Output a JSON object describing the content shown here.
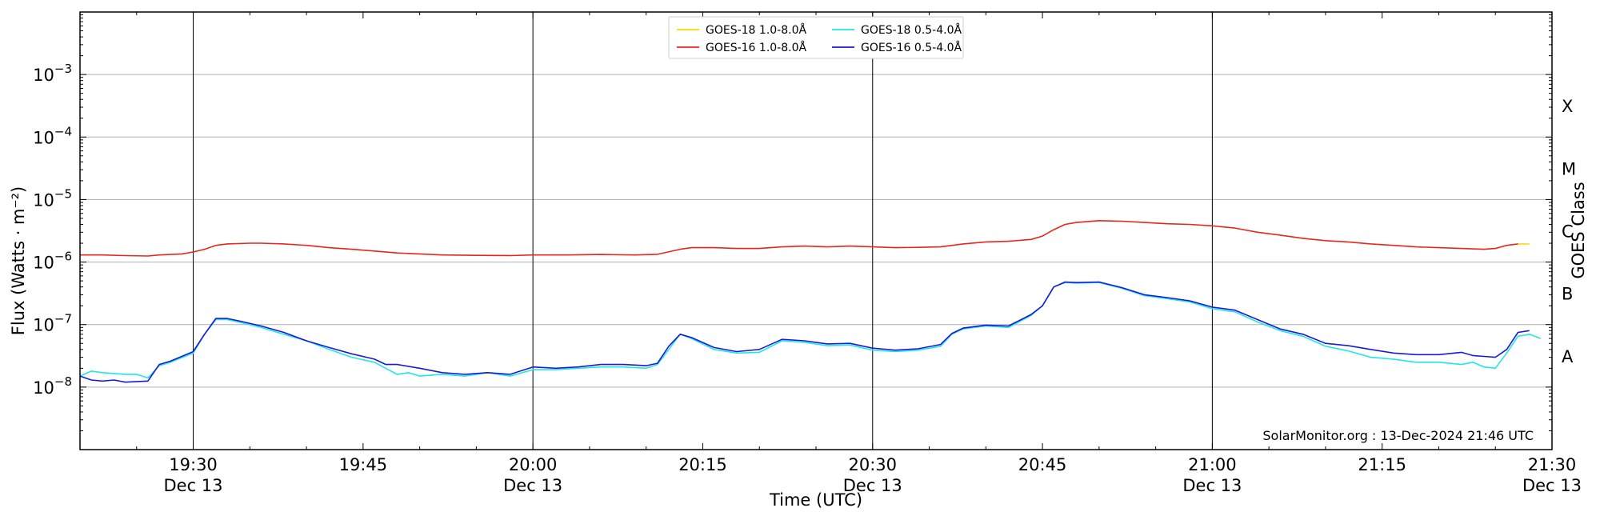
{
  "chart_data": {
    "type": "line",
    "title": "",
    "xlabel": "Time (UTC)",
    "ylabel": "Flux (Watts · m⁻²)",
    "y2label": "GOES Class",
    "yscale": "log",
    "ylim": [
      1e-09,
      0.01
    ],
    "xlim": [
      "19:20",
      "21:30"
    ],
    "grid": "horizontal",
    "legend_position": "top-center",
    "yticks": [
      {
        "value": 1e-08,
        "base": "10",
        "exp": "−8"
      },
      {
        "value": 1e-07,
        "base": "10",
        "exp": "−7"
      },
      {
        "value": 1e-06,
        "base": "10",
        "exp": "−6"
      },
      {
        "value": 1e-05,
        "base": "10",
        "exp": "−5"
      },
      {
        "value": 0.0001,
        "base": "10",
        "exp": "−4"
      },
      {
        "value": 0.001,
        "base": "10",
        "exp": "−3"
      }
    ],
    "xticks": [
      {
        "time": "19:30",
        "label": "19:30",
        "sub": "Dec 13"
      },
      {
        "time": "19:45",
        "label": "19:45",
        "sub": ""
      },
      {
        "time": "20:00",
        "label": "20:00",
        "sub": "Dec 13"
      },
      {
        "time": "20:15",
        "label": "20:15",
        "sub": ""
      },
      {
        "time": "20:30",
        "label": "20:30",
        "sub": "Dec 13"
      },
      {
        "time": "20:45",
        "label": "20:45",
        "sub": ""
      },
      {
        "time": "21:00",
        "label": "21:00",
        "sub": "Dec 13"
      },
      {
        "time": "21:15",
        "label": "21:15",
        "sub": ""
      },
      {
        "time": "21:30",
        "label": "21:30",
        "sub": "Dec 13"
      }
    ],
    "vlines": [
      "19:30",
      "20:00",
      "20:30",
      "21:00",
      "21:30"
    ],
    "goes_classes": [
      {
        "label": "A",
        "value": 3.16e-08
      },
      {
        "label": "B",
        "value": 3.16e-07
      },
      {
        "label": "C",
        "value": 3.16e-06
      },
      {
        "label": "M",
        "value": 3.16e-05
      },
      {
        "label": "X",
        "value": 0.000316
      }
    ],
    "series": [
      {
        "name": "GOES-18 1.0-8.0Å",
        "color": "#ffd700",
        "points": [
          [
            "21:27",
            1.95e-06
          ],
          [
            "21:28",
            1.95e-06
          ]
        ]
      },
      {
        "name": "GOES-16 1.0-8.0Å",
        "color": "#e8261a",
        "points": [
          [
            "19:20",
            1.3e-06
          ],
          [
            "19:22",
            1.3e-06
          ],
          [
            "19:24",
            1.27e-06
          ],
          [
            "19:26",
            1.25e-06
          ],
          [
            "19:27",
            1.3e-06
          ],
          [
            "19:29",
            1.35e-06
          ],
          [
            "19:30",
            1.45e-06
          ],
          [
            "19:31",
            1.6e-06
          ],
          [
            "19:32",
            1.85e-06
          ],
          [
            "19:33",
            1.95e-06
          ],
          [
            "19:35",
            2e-06
          ],
          [
            "19:36",
            2e-06
          ],
          [
            "19:38",
            1.95e-06
          ],
          [
            "19:40",
            1.85e-06
          ],
          [
            "19:42",
            1.7e-06
          ],
          [
            "19:44",
            1.6e-06
          ],
          [
            "19:46",
            1.5e-06
          ],
          [
            "19:48",
            1.4e-06
          ],
          [
            "19:50",
            1.35e-06
          ],
          [
            "19:52",
            1.3e-06
          ],
          [
            "19:55",
            1.28e-06
          ],
          [
            "19:58",
            1.27e-06
          ],
          [
            "20:00",
            1.3e-06
          ],
          [
            "20:03",
            1.3e-06
          ],
          [
            "20:06",
            1.32e-06
          ],
          [
            "20:09",
            1.3e-06
          ],
          [
            "20:11",
            1.33e-06
          ],
          [
            "20:13",
            1.6e-06
          ],
          [
            "20:14",
            1.7e-06
          ],
          [
            "20:16",
            1.7e-06
          ],
          [
            "20:18",
            1.65e-06
          ],
          [
            "20:20",
            1.65e-06
          ],
          [
            "20:22",
            1.75e-06
          ],
          [
            "20:24",
            1.8e-06
          ],
          [
            "20:26",
            1.75e-06
          ],
          [
            "20:28",
            1.8e-06
          ],
          [
            "20:30",
            1.75e-06
          ],
          [
            "20:32",
            1.7e-06
          ],
          [
            "20:34",
            1.72e-06
          ],
          [
            "20:36",
            1.75e-06
          ],
          [
            "20:38",
            1.95e-06
          ],
          [
            "20:40",
            2.1e-06
          ],
          [
            "20:42",
            2.15e-06
          ],
          [
            "20:44",
            2.3e-06
          ],
          [
            "20:45",
            2.6e-06
          ],
          [
            "20:46",
            3.3e-06
          ],
          [
            "20:47",
            4e-06
          ],
          [
            "20:48",
            4.3e-06
          ],
          [
            "20:50",
            4.6e-06
          ],
          [
            "20:52",
            4.5e-06
          ],
          [
            "20:54",
            4.3e-06
          ],
          [
            "20:56",
            4.1e-06
          ],
          [
            "20:58",
            4e-06
          ],
          [
            "21:00",
            3.8e-06
          ],
          [
            "21:02",
            3.5e-06
          ],
          [
            "21:04",
            3e-06
          ],
          [
            "21:06",
            2.7e-06
          ],
          [
            "21:08",
            2.4e-06
          ],
          [
            "21:10",
            2.2e-06
          ],
          [
            "21:12",
            2.1e-06
          ],
          [
            "21:14",
            1.95e-06
          ],
          [
            "21:16",
            1.85e-06
          ],
          [
            "21:18",
            1.75e-06
          ],
          [
            "21:20",
            1.7e-06
          ],
          [
            "21:22",
            1.65e-06
          ],
          [
            "21:24",
            1.6e-06
          ],
          [
            "21:25",
            1.65e-06
          ],
          [
            "21:26",
            1.85e-06
          ],
          [
            "21:27",
            1.95e-06
          ]
        ]
      },
      {
        "name": "GOES-18 0.5-4.0Å",
        "color": "#22e6e6",
        "points": [
          [
            "19:20",
            1.5e-08
          ],
          [
            "19:21",
            1.8e-08
          ],
          [
            "19:22",
            1.7e-08
          ],
          [
            "19:24",
            1.6e-08
          ],
          [
            "19:25",
            1.6e-08
          ],
          [
            "19:26",
            1.4e-08
          ],
          [
            "19:27",
            2.2e-08
          ],
          [
            "19:28",
            2.5e-08
          ],
          [
            "19:30",
            3.5e-08
          ],
          [
            "19:31",
            7e-08
          ],
          [
            "19:32",
            1.2e-07
          ],
          [
            "19:33",
            1.2e-07
          ],
          [
            "19:34",
            1.1e-07
          ],
          [
            "19:36",
            9e-08
          ],
          [
            "19:38",
            7e-08
          ],
          [
            "19:40",
            5.5e-08
          ],
          [
            "19:42",
            4e-08
          ],
          [
            "19:44",
            3e-08
          ],
          [
            "19:46",
            2.5e-08
          ],
          [
            "19:48",
            1.6e-08
          ],
          [
            "19:49",
            1.7e-08
          ],
          [
            "19:50",
            1.5e-08
          ],
          [
            "19:52",
            1.6e-08
          ],
          [
            "19:54",
            1.5e-08
          ],
          [
            "19:56",
            1.7e-08
          ],
          [
            "19:58",
            1.5e-08
          ],
          [
            "20:00",
            1.9e-08
          ],
          [
            "20:02",
            1.9e-08
          ],
          [
            "20:04",
            2e-08
          ],
          [
            "20:06",
            2.1e-08
          ],
          [
            "20:08",
            2.1e-08
          ],
          [
            "20:10",
            2e-08
          ],
          [
            "20:11",
            2.3e-08
          ],
          [
            "20:12",
            4e-08
          ],
          [
            "20:13",
            7e-08
          ],
          [
            "20:14",
            6e-08
          ],
          [
            "20:16",
            4e-08
          ],
          [
            "20:18",
            3.5e-08
          ],
          [
            "20:20",
            3.6e-08
          ],
          [
            "20:22",
            5.5e-08
          ],
          [
            "20:24",
            5.2e-08
          ],
          [
            "20:26",
            4.6e-08
          ],
          [
            "20:28",
            4.7e-08
          ],
          [
            "20:30",
            3.9e-08
          ],
          [
            "20:32",
            3.7e-08
          ],
          [
            "20:34",
            3.9e-08
          ],
          [
            "20:36",
            4.5e-08
          ],
          [
            "20:37",
            7e-08
          ],
          [
            "20:38",
            8.5e-08
          ],
          [
            "20:40",
            9.5e-08
          ],
          [
            "20:42",
            9e-08
          ],
          [
            "20:44",
            1.4e-07
          ],
          [
            "20:45",
            2e-07
          ],
          [
            "20:46",
            4e-07
          ],
          [
            "20:47",
            4.7e-07
          ],
          [
            "20:48",
            4.6e-07
          ],
          [
            "20:50",
            4.7e-07
          ],
          [
            "20:52",
            3.8e-07
          ],
          [
            "20:54",
            2.9e-07
          ],
          [
            "20:56",
            2.6e-07
          ],
          [
            "20:58",
            2.3e-07
          ],
          [
            "21:00",
            1.8e-07
          ],
          [
            "21:02",
            1.6e-07
          ],
          [
            "21:04",
            1.1e-07
          ],
          [
            "21:06",
            8e-08
          ],
          [
            "21:08",
            6.5e-08
          ],
          [
            "21:10",
            4.5e-08
          ],
          [
            "21:12",
            3.8e-08
          ],
          [
            "21:14",
            3e-08
          ],
          [
            "21:16",
            2.8e-08
          ],
          [
            "21:18",
            2.5e-08
          ],
          [
            "21:20",
            2.5e-08
          ],
          [
            "21:22",
            2.3e-08
          ],
          [
            "21:23",
            2.5e-08
          ],
          [
            "21:24",
            2.1e-08
          ],
          [
            "21:25",
            2e-08
          ],
          [
            "21:26",
            3.5e-08
          ],
          [
            "21:27",
            6.5e-08
          ],
          [
            "21:28",
            7e-08
          ],
          [
            "21:29",
            6e-08
          ]
        ]
      },
      {
        "name": "GOES-16 0.5-4.0Å",
        "color": "#1a1ad9",
        "points": [
          [
            "19:20",
            1.5e-08
          ],
          [
            "19:21",
            1.3e-08
          ],
          [
            "19:22",
            1.25e-08
          ],
          [
            "19:23",
            1.3e-08
          ],
          [
            "19:24",
            1.2e-08
          ],
          [
            "19:26",
            1.25e-08
          ],
          [
            "19:27",
            2.3e-08
          ],
          [
            "19:28",
            2.6e-08
          ],
          [
            "19:30",
            3.7e-08
          ],
          [
            "19:31",
            7e-08
          ],
          [
            "19:32",
            1.25e-07
          ],
          [
            "19:33",
            1.25e-07
          ],
          [
            "19:34",
            1.15e-07
          ],
          [
            "19:36",
            9.5e-08
          ],
          [
            "19:38",
            7.5e-08
          ],
          [
            "19:40",
            5.5e-08
          ],
          [
            "19:42",
            4.3e-08
          ],
          [
            "19:44",
            3.4e-08
          ],
          [
            "19:46",
            2.8e-08
          ],
          [
            "19:47",
            2.3e-08
          ],
          [
            "19:48",
            2.3e-08
          ],
          [
            "19:50",
            2e-08
          ],
          [
            "19:52",
            1.7e-08
          ],
          [
            "19:54",
            1.6e-08
          ],
          [
            "19:56",
            1.7e-08
          ],
          [
            "19:58",
            1.6e-08
          ],
          [
            "20:00",
            2.1e-08
          ],
          [
            "20:02",
            2e-08
          ],
          [
            "20:04",
            2.1e-08
          ],
          [
            "20:06",
            2.3e-08
          ],
          [
            "20:08",
            2.3e-08
          ],
          [
            "20:10",
            2.2e-08
          ],
          [
            "20:11",
            2.4e-08
          ],
          [
            "20:12",
            4.5e-08
          ],
          [
            "20:13",
            7e-08
          ],
          [
            "20:14",
            6.2e-08
          ],
          [
            "20:16",
            4.3e-08
          ],
          [
            "20:18",
            3.7e-08
          ],
          [
            "20:20",
            4e-08
          ],
          [
            "20:22",
            5.8e-08
          ],
          [
            "20:24",
            5.5e-08
          ],
          [
            "20:26",
            4.9e-08
          ],
          [
            "20:28",
            5e-08
          ],
          [
            "20:30",
            4.2e-08
          ],
          [
            "20:32",
            3.9e-08
          ],
          [
            "20:34",
            4.1e-08
          ],
          [
            "20:36",
            4.8e-08
          ],
          [
            "20:37",
            7.2e-08
          ],
          [
            "20:38",
            8.8e-08
          ],
          [
            "20:40",
            9.8e-08
          ],
          [
            "20:42",
            9.5e-08
          ],
          [
            "20:44",
            1.45e-07
          ],
          [
            "20:45",
            2e-07
          ],
          [
            "20:46",
            4e-07
          ],
          [
            "20:47",
            4.8e-07
          ],
          [
            "20:48",
            4.7e-07
          ],
          [
            "20:50",
            4.8e-07
          ],
          [
            "20:52",
            3.9e-07
          ],
          [
            "20:54",
            3e-07
          ],
          [
            "20:56",
            2.7e-07
          ],
          [
            "20:58",
            2.4e-07
          ],
          [
            "21:00",
            1.9e-07
          ],
          [
            "21:02",
            1.7e-07
          ],
          [
            "21:04",
            1.2e-07
          ],
          [
            "21:06",
            8.5e-08
          ],
          [
            "21:08",
            7e-08
          ],
          [
            "21:10",
            5e-08
          ],
          [
            "21:12",
            4.6e-08
          ],
          [
            "21:14",
            4e-08
          ],
          [
            "21:16",
            3.5e-08
          ],
          [
            "21:18",
            3.3e-08
          ],
          [
            "21:20",
            3.3e-08
          ],
          [
            "21:22",
            3.6e-08
          ],
          [
            "21:23",
            3.2e-08
          ],
          [
            "21:24",
            3.1e-08
          ],
          [
            "21:25",
            3e-08
          ],
          [
            "21:26",
            4e-08
          ],
          [
            "21:27",
            7.5e-08
          ],
          [
            "21:28",
            8e-08
          ]
        ]
      }
    ],
    "annotation": "SolarMonitor.org : 13-Dec-2024 21:46 UTC"
  }
}
